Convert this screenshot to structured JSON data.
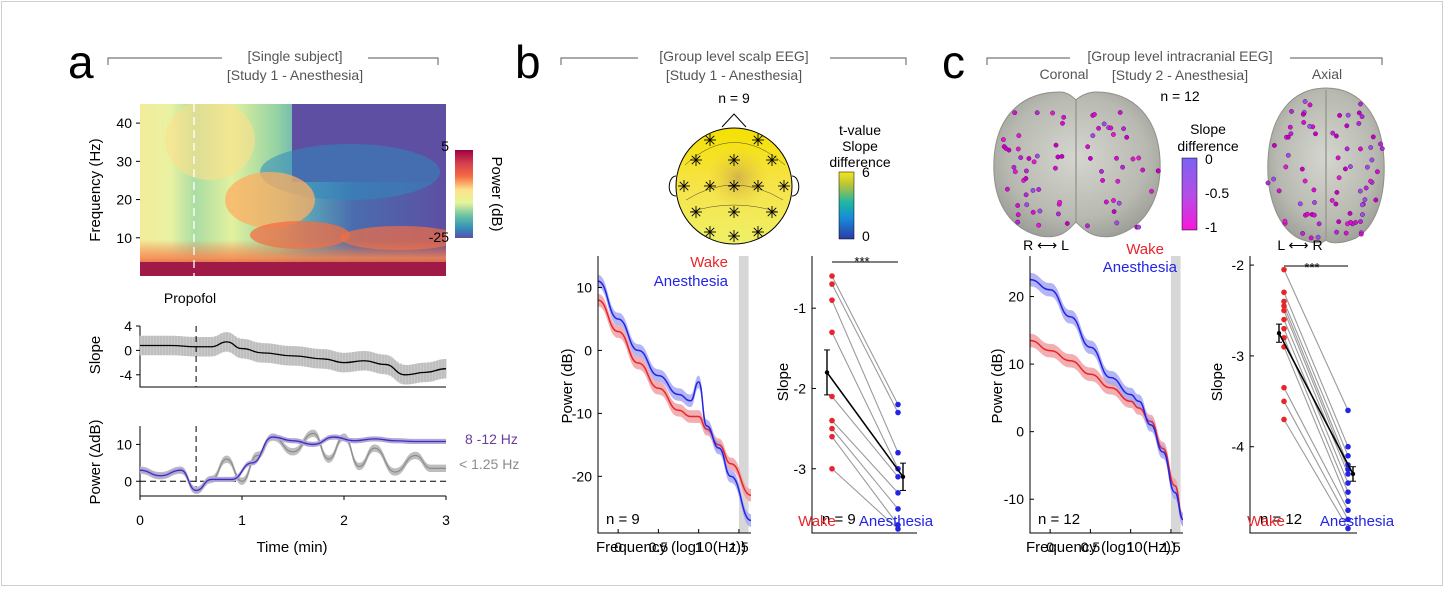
{
  "colors": {
    "wake": "#e8252b",
    "anesthesia": "#2224e6",
    "alpha": "#6a3d9a",
    "slow": "#8c8c8c",
    "connector": "#9a9a9a",
    "electrode": "#c400c4"
  },
  "panel_a": {
    "letter": "a",
    "header_line1": "[Single subject]",
    "header_line2": "[Study 1 - Anesthesia]",
    "spectrogram": {
      "ylabel": "Frequency (Hz)",
      "yticks": [
        "40",
        "30",
        "20",
        "10"
      ],
      "ytick_values": [
        40,
        30,
        20,
        10
      ],
      "ylim": [
        0,
        45
      ],
      "colorbar_label": "Power (dB)",
      "colorbar_top": "5",
      "colorbar_bottom": "-25",
      "colormap": "spectral (red high → violet low)",
      "event_label": "Propofol",
      "event_time_min": 0.55
    },
    "slope": {
      "ylabel": "Slope",
      "yticks": [
        "4",
        "0",
        "-4"
      ],
      "ytick_values": [
        4,
        0,
        -4
      ],
      "ylim": [
        -6,
        4
      ],
      "t": [
        0,
        0.3,
        0.55,
        0.7,
        0.85,
        1.0,
        1.2,
        1.5,
        1.8,
        2.0,
        2.2,
        2.4,
        2.6,
        2.8,
        3.0
      ],
      "mean": [
        0.8,
        0.8,
        0.6,
        0.6,
        1.4,
        0.3,
        -0.4,
        -0.9,
        -1.4,
        -2.0,
        -1.7,
        -2.3,
        -4.0,
        -3.6,
        -3.0
      ],
      "err": 1.6
    },
    "power": {
      "ylabel": "Power (ΔdB)",
      "yticks": [
        "10",
        "0"
      ],
      "ytick_values": [
        10,
        0
      ],
      "ylim": [
        -4,
        15
      ],
      "xlabel": "Time (min)",
      "xticks": [
        "0",
        "1",
        "2",
        "3"
      ],
      "xtick_values": [
        0,
        1,
        2,
        3
      ],
      "series": [
        {
          "name": "8 -12 Hz",
          "t": [
            0,
            0.2,
            0.4,
            0.55,
            0.7,
            0.9,
            1.1,
            1.3,
            1.5,
            1.7,
            1.9,
            2.1,
            2.3,
            2.5,
            2.7,
            3.0
          ],
          "y": [
            3,
            1.5,
            3,
            -2.5,
            0.5,
            0.5,
            5,
            12,
            11,
            10,
            12,
            11,
            11.5,
            11,
            10.8,
            10.8
          ]
        },
        {
          "name": "< 1.25 Hz",
          "t": [
            0,
            0.2,
            0.4,
            0.55,
            0.7,
            0.85,
            1.0,
            1.15,
            1.3,
            1.5,
            1.7,
            1.85,
            2.0,
            2.15,
            2.3,
            2.5,
            2.7,
            2.85,
            3.0
          ],
          "y": [
            3,
            1.5,
            3,
            -2.5,
            0.5,
            6,
            0,
            7,
            12,
            8,
            13,
            6,
            12,
            4,
            9,
            2.5,
            7,
            3.5,
            3.5
          ]
        }
      ]
    }
  },
  "panel_b": {
    "letter": "b",
    "header_line1": "[Group level scalp EEG]",
    "header_line2": "[Study 1 - Anesthesia]",
    "topo_n": "n = 9",
    "cb_title1": "t-value",
    "cb_title2": "Slope",
    "cb_title3": "difference",
    "cb_top": "6",
    "cb_bottom": "0",
    "psd": {
      "ylabel": "Power (dB)",
      "xlabel": "Frequency (log10(Hz))",
      "yticks": [
        "10",
        "0",
        "-10",
        "-20"
      ],
      "ytick_values": [
        10,
        0,
        -10,
        -20
      ],
      "ylim": [
        -29,
        15
      ],
      "xticks": [
        "0",
        "0.5",
        "1",
        "1.5"
      ],
      "xtick_values": [
        0,
        0.5,
        1,
        1.5
      ],
      "xlim": [
        -0.25,
        1.65
      ],
      "n_label": "n = 9",
      "legend_wake": "Wake",
      "legend_anesthesia": "Anesthesia",
      "series": [
        {
          "name": "Wake",
          "x": [
            -0.25,
            0,
            0.25,
            0.5,
            0.75,
            0.9,
            1.0,
            1.1,
            1.25,
            1.4,
            1.65
          ],
          "y": [
            8,
            3,
            -2,
            -6,
            -9.5,
            -10.5,
            -10.5,
            -12.5,
            -15,
            -18,
            -23
          ]
        },
        {
          "name": "Anesthesia",
          "x": [
            -0.25,
            0,
            0.25,
            0.5,
            0.75,
            0.9,
            1.0,
            1.1,
            1.25,
            1.4,
            1.65
          ],
          "y": [
            11,
            5,
            0,
            -4,
            -7,
            -8,
            -5,
            -12,
            -15.5,
            -20,
            -27
          ]
        }
      ],
      "band_err": 1.0
    },
    "slope": {
      "ylabel": "Slope",
      "yticks": [
        "-1",
        "-2",
        "-3"
      ],
      "ytick_values": [
        -1,
        -2,
        -3
      ],
      "ylim": [
        -3.8,
        -0.35
      ],
      "xticklabels": [
        "Wake",
        "Anesthesia"
      ],
      "sig": "***",
      "n_label": "n = 9",
      "wake": [
        -0.6,
        -0.7,
        -0.9,
        -1.3,
        -2.1,
        -2.4,
        -2.5,
        -2.6,
        -3.0
      ],
      "anesthesia": [
        -2.2,
        -2.3,
        -2.8,
        -3.0,
        -3.1,
        -3.3,
        -3.5,
        -3.7,
        -3.75
      ],
      "wake_mean": -1.8,
      "wake_sem": 0.28,
      "anesthesia_mean": -3.1,
      "anesthesia_sem": 0.17
    }
  },
  "panel_c": {
    "letter": "c",
    "header_line1": "[Group level intracranial EEG]",
    "header_line2": "[Study 2 - Anesthesia]",
    "coronal_label": "Coronal",
    "axial_label": "Axial",
    "n_label_top": "n = 12",
    "cb_title1": "Slope",
    "cb_title2": "difference",
    "cb_ticks": [
      "0",
      "-0.5",
      "-1"
    ],
    "coronal_axis": "R ⟷ L",
    "axial_axis": "L ⟷ R",
    "psd": {
      "ylabel": "Power (dB)",
      "xlabel": "Frequency (log10(Hz))",
      "yticks": [
        "20",
        "10",
        "0",
        "-10"
      ],
      "ytick_values": [
        20,
        10,
        0,
        -10
      ],
      "ylim": [
        -15,
        26
      ],
      "xticks": [
        "0",
        "0.5",
        "1",
        "1.5"
      ],
      "xtick_values": [
        0,
        0.5,
        1,
        1.5
      ],
      "xlim": [
        -0.25,
        1.65
      ],
      "n_label": "n = 12",
      "legend_wake": "Wake",
      "legend_anesthesia": "Anesthesia",
      "series": [
        {
          "name": "Wake",
          "x": [
            -0.25,
            0,
            0.25,
            0.5,
            0.75,
            1.0,
            1.1,
            1.25,
            1.4,
            1.55,
            1.65
          ],
          "y": [
            13.5,
            12,
            10.5,
            8.5,
            6.5,
            4.5,
            3.5,
            1.5,
            -2.5,
            -8,
            -13
          ]
        },
        {
          "name": "Anesthesia",
          "x": [
            -0.25,
            0,
            0.25,
            0.5,
            0.75,
            1.0,
            1.1,
            1.25,
            1.4,
            1.55,
            1.65
          ],
          "y": [
            22.5,
            21,
            17,
            12.5,
            8,
            5.5,
            4.5,
            1,
            -3,
            -9,
            -13
          ]
        }
      ],
      "band_err": 1.0
    },
    "slope": {
      "ylabel": "Slope",
      "yticks": [
        "-2",
        "-3",
        "-4"
      ],
      "ytick_values": [
        -2,
        -3,
        -4
      ],
      "ylim": [
        -4.95,
        -1.9
      ],
      "xticklabels": [
        "Wake",
        "Anesthesia"
      ],
      "sig": "***",
      "n_label": "n = 12",
      "wake": [
        -2.05,
        -2.3,
        -2.4,
        -2.45,
        -2.5,
        -2.6,
        -2.7,
        -2.8,
        -2.9,
        -3.35,
        -3.5,
        -3.7
      ],
      "anesthesia": [
        -3.6,
        -4.0,
        -4.1,
        -4.2,
        -4.25,
        -4.3,
        -4.4,
        -4.5,
        -4.6,
        -4.7,
        -4.8,
        -4.9
      ],
      "wake_mean": -2.75,
      "wake_sem": 0.1,
      "anesthesia_mean": -4.3,
      "anesthesia_sem": 0.08
    }
  },
  "chart_data": [
    {
      "type": "heatmap",
      "title": "",
      "xlabel": "Time (min)",
      "ylabel": "Frequency (Hz)",
      "xlim": [
        0,
        3
      ],
      "ylim": [
        0,
        45
      ],
      "colorbar_range": [
        -25,
        5
      ],
      "colorbar_label": "Power (dB)",
      "annotation": "Propofol"
    },
    {
      "type": "line",
      "ylabel": "Slope",
      "xlabel": "Time (min)",
      "xlim": [
        0,
        3
      ],
      "ylim": [
        -6,
        4
      ]
    },
    {
      "type": "line",
      "ylabel": "Power (ΔdB)",
      "xlabel": "Time (min)",
      "xlim": [
        0,
        3
      ],
      "ylim": [
        -4,
        15
      ],
      "series": [
        {
          "name": "8 -12 Hz"
        },
        {
          "name": "< 1.25 Hz"
        }
      ]
    },
    {
      "type": "line",
      "xlabel": "Frequency (log10(Hz))",
      "ylabel": "Power (dB)",
      "series": [
        {
          "name": "Wake"
        },
        {
          "name": "Anesthesia"
        }
      ],
      "annotation": "n = 9"
    },
    {
      "type": "scatter",
      "ylabel": "Slope",
      "categories": [
        "Wake",
        "Anesthesia"
      ],
      "annotation": "***"
    },
    {
      "type": "line",
      "xlabel": "Frequency (log10(Hz))",
      "ylabel": "Power (dB)",
      "series": [
        {
          "name": "Wake"
        },
        {
          "name": "Anesthesia"
        }
      ],
      "annotation": "n = 12"
    },
    {
      "type": "scatter",
      "ylabel": "Slope",
      "categories": [
        "Wake",
        "Anesthesia"
      ],
      "annotation": "***"
    }
  ]
}
